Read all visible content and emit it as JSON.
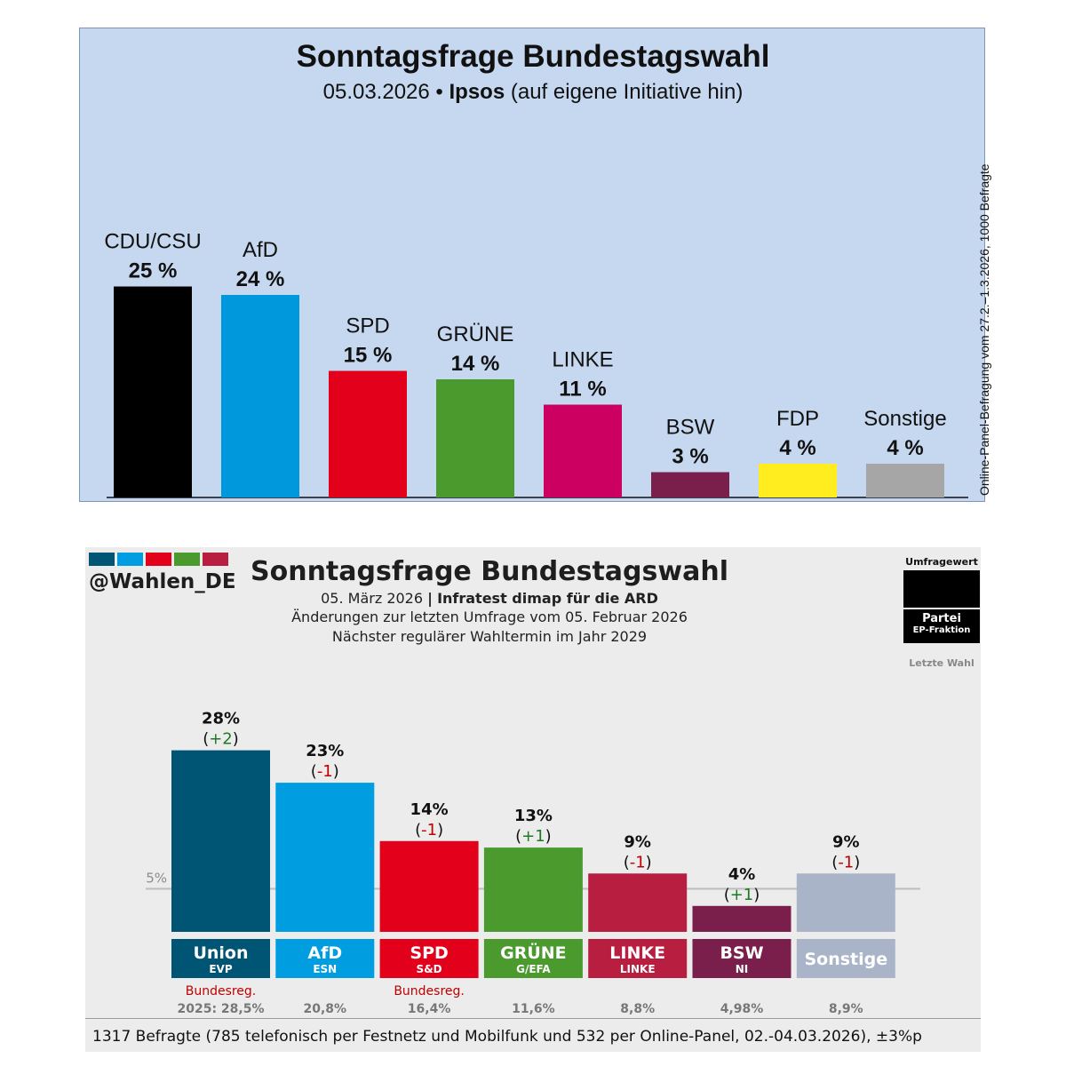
{
  "chart_data": [
    {
      "type": "bar",
      "title": "Sonntagsfrage Bundestagswahl",
      "subtitle": {
        "date": "05.03.2026",
        "separator": "•",
        "institute": "Ipsos",
        "note": "(auf eigene Initiative hin)"
      },
      "side_note": "Online-Panel-Befragung vom 27.2.–1.3.2026, 1000 Befragte",
      "unit": "%",
      "ylim": [
        0,
        25
      ],
      "grid": false,
      "categories": [
        "CDU/CSU",
        "AfD",
        "SPD",
        "GRÜNE",
        "LINKE",
        "BSW",
        "FDP",
        "Sonstige"
      ],
      "values": [
        25,
        24,
        15,
        14,
        11,
        3,
        4,
        4
      ],
      "value_labels": [
        "25 %",
        "24 %",
        "15 %",
        "14 %",
        "11 %",
        "3 %",
        "4 %",
        "4 %"
      ],
      "colors": [
        "#000000",
        "#0098dd",
        "#e3001b",
        "#4a9a2e",
        "#cc0060",
        "#7a1f4b",
        "#ffed20",
        "#a6a6a6"
      ]
    },
    {
      "type": "bar",
      "title": "Sonntagsfrage Bundestagswahl",
      "handle": "@Wahlen_DE",
      "subtitle_date": "05. März 2026",
      "subtitle_sep": "|",
      "subtitle_institute": "Infratest dimap für die ARD",
      "subtitle_line2": "Änderungen zur letzten Umfrage vom 05. Februar 2026",
      "subtitle_line3": "Nächster regulärer Wahltermin im Jahr 2029",
      "threshold_label": "5%",
      "threshold_value": 5,
      "ylim": [
        0,
        28
      ],
      "categories": [
        "Union",
        "AfD",
        "SPD",
        "GRÜNE",
        "LINKE",
        "BSW",
        "Sonstige"
      ],
      "sub_labels": [
        "EVP",
        "ESN",
        "S&D",
        "G/EFA",
        "LINKE",
        "NI",
        ""
      ],
      "values": [
        28,
        23,
        14,
        13,
        9,
        4,
        9
      ],
      "value_labels": [
        "28%",
        "23%",
        "14%",
        "13%",
        "9%",
        "4%",
        "9%"
      ],
      "changes": [
        "(+2)",
        "(-1)",
        "(-1)",
        "(+1)",
        "(-1)",
        "(+1)",
        "(-1)"
      ],
      "change_signs": [
        "+",
        "-",
        "-",
        "+",
        "-",
        "+",
        "-"
      ],
      "government_notes": [
        "Bundesreg.",
        "",
        "Bundesreg.",
        "",
        "",
        "",
        ""
      ],
      "last_election": [
        "2025: 28,5%",
        "20,8%",
        "16,4%",
        "11,6%",
        "8,8%",
        "4,98%",
        "8,9%"
      ],
      "colors": [
        "#005574",
        "#009ee0",
        "#e3001b",
        "#4a9a2e",
        "#b71e3f",
        "#7a1f4b",
        "#aab4c8"
      ],
      "header_swatches": [
        "#005574",
        "#009ee0",
        "#e3001b",
        "#4a9a2e",
        "#b71e3f"
      ],
      "change_colors": {
        "+": "#1c7a22",
        "-": "#c00000"
      },
      "legend": {
        "title": "Umfragewert",
        "party": "Partei",
        "faction": "EP-Fraktion",
        "last": "Letzte Wahl"
      },
      "footer": "1317 Befragte (785 telefonisch per Festnetz und Mobilfunk und 532 per Online-Panel, 02.-04.03.2026), ±3%p"
    }
  ]
}
